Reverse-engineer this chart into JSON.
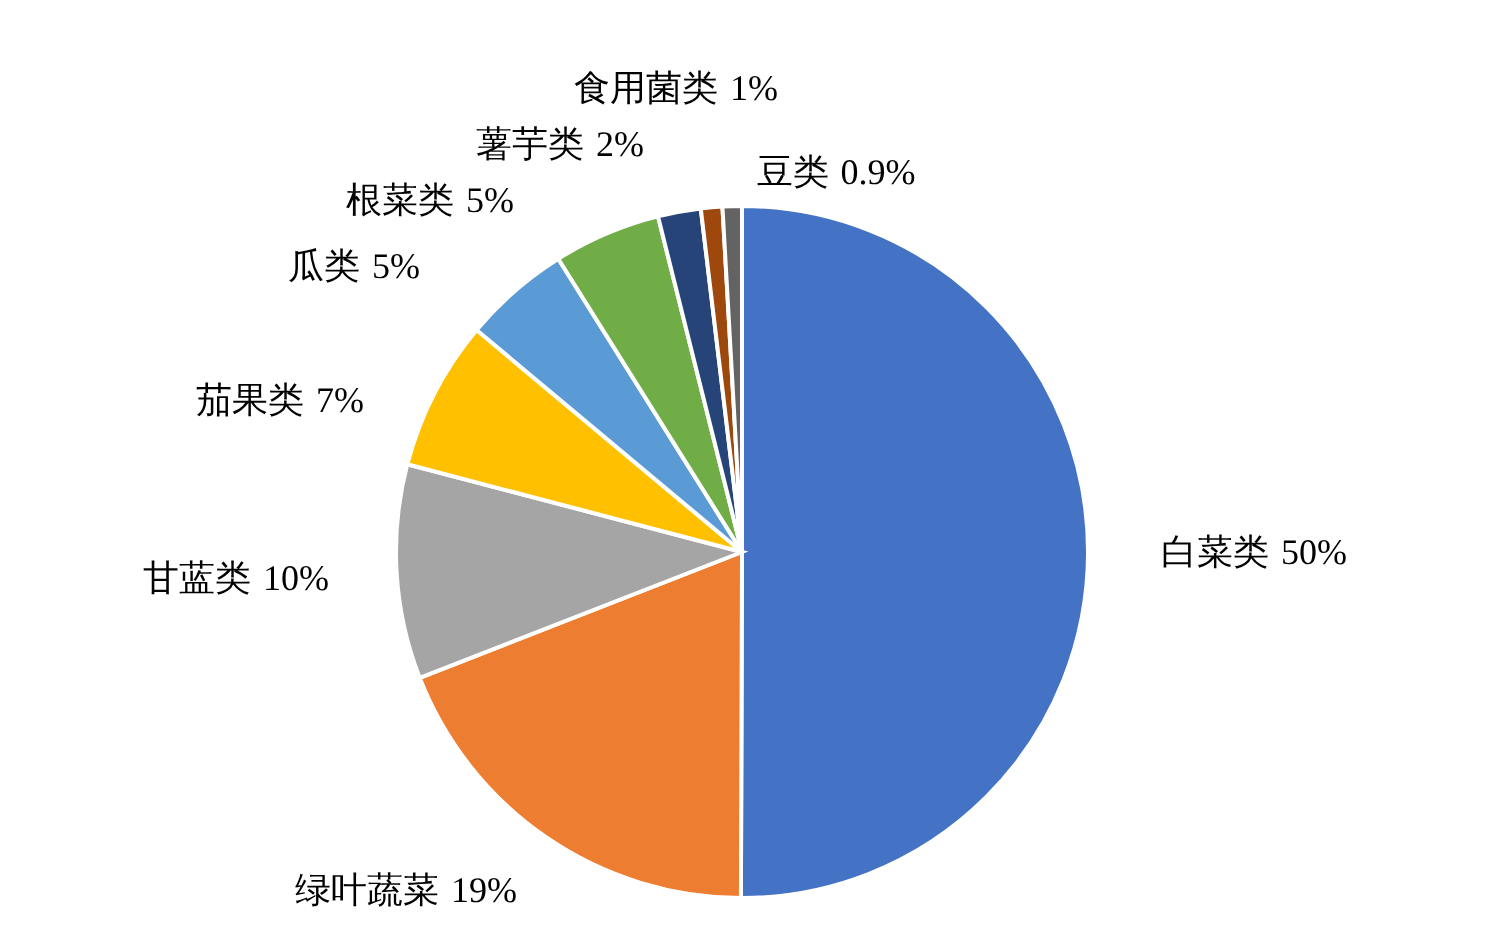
{
  "chart_data": {
    "type": "pie",
    "categories": [
      "白菜类",
      "绿叶蔬菜",
      "甘蓝类",
      "茄果类",
      "瓜类",
      "根菜类",
      "薯芋类",
      "食用菌类",
      "豆类"
    ],
    "values": [
      50,
      19,
      10,
      7,
      5,
      5,
      2,
      1,
      0.9
    ],
    "value_labels": [
      "50%",
      "19%",
      "10%",
      "7%",
      "5%",
      "5%",
      "2%",
      "1%",
      "0.9%"
    ],
    "colors": [
      "#4472c4",
      "#ed7d31",
      "#a5a5a5",
      "#ffc000",
      "#5b9bd5",
      "#70ad47",
      "#264478",
      "#9e480e",
      "#636363"
    ]
  }
}
